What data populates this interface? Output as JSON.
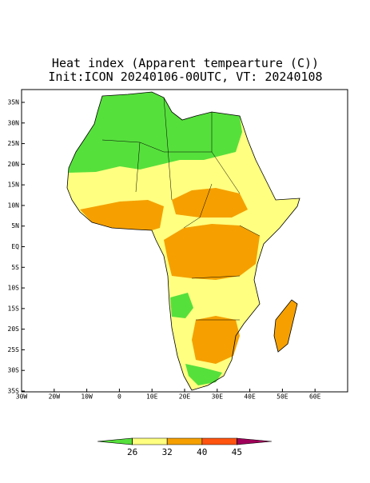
{
  "title": "Heat index (Apparent tempearture (C))",
  "subtitle": "Init:ICON 20240106-00UTC, VT: 20240108",
  "lat_ticks": [
    {
      "value": 35,
      "label": "35N"
    },
    {
      "value": 30,
      "label": "30N"
    },
    {
      "value": 25,
      "label": "25N"
    },
    {
      "value": 20,
      "label": "20N"
    },
    {
      "value": 15,
      "label": "15N"
    },
    {
      "value": 10,
      "label": "10N"
    },
    {
      "value": 5,
      "label": "5N"
    },
    {
      "value": 0,
      "label": "EQ"
    },
    {
      "value": -5,
      "label": "5S"
    },
    {
      "value": -10,
      "label": "10S"
    },
    {
      "value": -15,
      "label": "15S"
    },
    {
      "value": -20,
      "label": "20S"
    },
    {
      "value": -25,
      "label": "25S"
    },
    {
      "value": -30,
      "label": "30S"
    },
    {
      "value": -35,
      "label": "35S"
    }
  ],
  "lon_ticks": [
    {
      "value": -30,
      "label": "30W"
    },
    {
      "value": -20,
      "label": "20W"
    },
    {
      "value": -10,
      "label": "10W"
    },
    0,
    {
      "value": 10,
      "label": "10E"
    },
    {
      "value": 20,
      "label": "20E"
    },
    {
      "value": 30,
      "label": "30E"
    },
    {
      "value": 40,
      "label": "40E"
    },
    {
      "value": 50,
      "label": "50E"
    },
    {
      "value": 60,
      "label": "60E"
    }
  ],
  "colorbar": {
    "levels": [
      26,
      32,
      40,
      45
    ],
    "colors": [
      "#56e03c",
      "#ffff80",
      "#f5a000",
      "#ff5410",
      "#a0005a"
    ]
  }
}
